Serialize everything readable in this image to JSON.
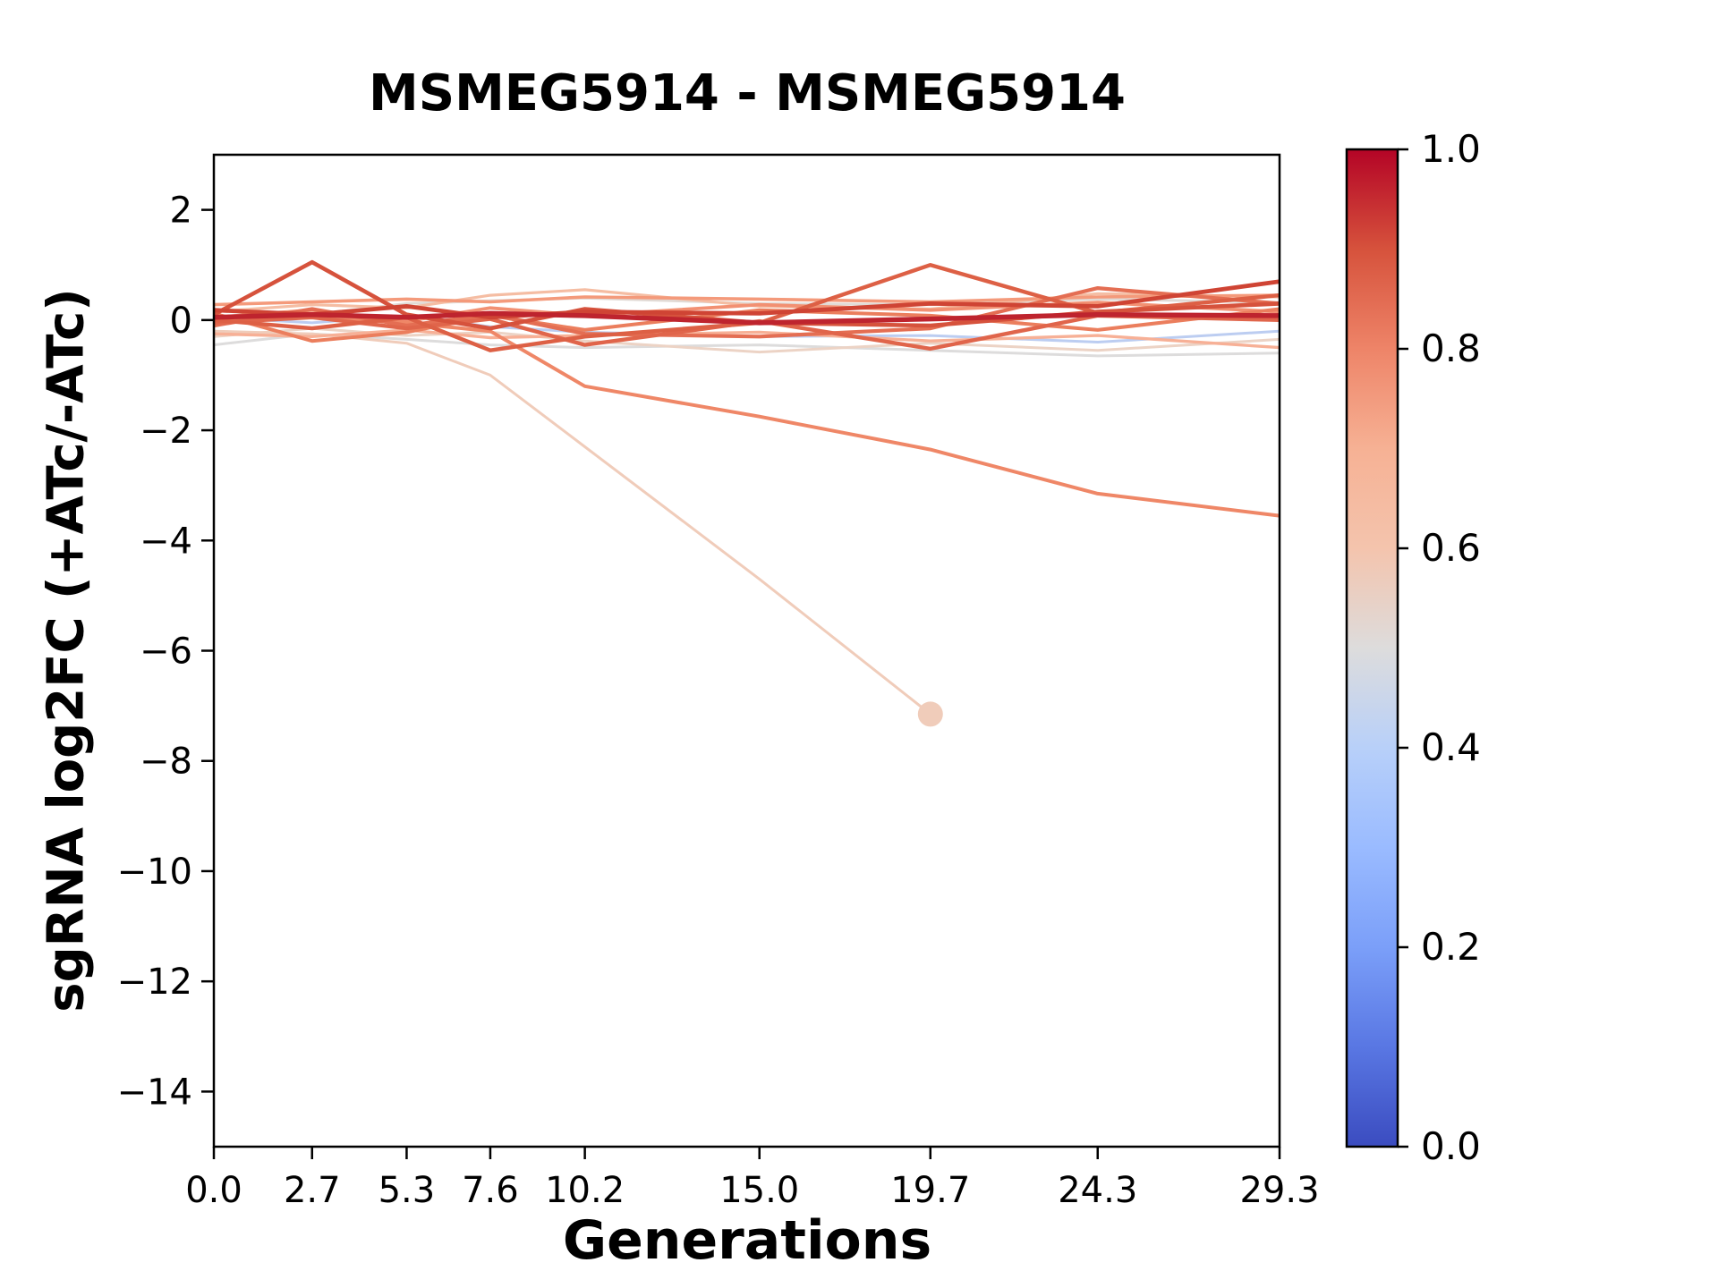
{
  "chart_data": {
    "type": "line",
    "title": "MSMEG5914 - MSMEG5914",
    "xlabel": "Generations",
    "ylabel": "sgRNA log2FC (+ATc/-ATc)",
    "xlim": [
      0,
      29.3
    ],
    "ylim": [
      -15,
      3
    ],
    "grid": false,
    "background": "#ffffff",
    "spine_color": "#000000",
    "x": [
      0.0,
      2.7,
      5.3,
      7.6,
      10.2,
      15.0,
      19.7,
      24.3,
      29.3
    ],
    "x_tick_labels": [
      "0.0",
      "2.7",
      "5.3",
      "7.6",
      "10.2",
      "15.0",
      "19.7",
      "24.3",
      "29.3"
    ],
    "y_ticks": [
      2,
      0,
      -2,
      -4,
      -6,
      -8,
      -10,
      -12,
      -14
    ],
    "y_tick_labels": [
      "2",
      "0",
      "−2",
      "−4",
      "−6",
      "−8",
      "−10",
      "−12",
      "−14"
    ],
    "series": [
      {
        "name": "line-01",
        "colormap_value": 0.42,
        "color": "#bccdf1",
        "width": 3.0,
        "values": [
          0.05,
          -0.05,
          0.08,
          -0.12,
          -0.22,
          -0.3,
          -0.28,
          -0.4,
          -0.2
        ]
      },
      {
        "name": "line-02",
        "colormap_value": 0.5,
        "color": "#dddcdc",
        "width": 3.0,
        "values": [
          -0.45,
          -0.25,
          -0.35,
          -0.45,
          -0.5,
          -0.45,
          -0.55,
          -0.65,
          -0.6
        ]
      },
      {
        "name": "line-03",
        "colormap_value": 0.53,
        "color": "#e1dad5",
        "width": 3.0,
        "values": [
          -0.05,
          0.1,
          0.3,
          0.35,
          0.4,
          0.3,
          0.28,
          0.38,
          0.32
        ]
      },
      {
        "name": "line-04",
        "colormap_value": 0.57,
        "color": "#ecd3c5",
        "width": 3.0,
        "values": [
          -0.3,
          -0.15,
          -0.28,
          -0.22,
          -0.38,
          -0.58,
          -0.42,
          -0.55,
          -0.35
        ]
      },
      {
        "name": "line-05",
        "colormap_value": 0.6,
        "color": "#f0ccba",
        "width": 3.0,
        "has_end_marker": true,
        "end_marker_radius": 14,
        "values": [
          -0.2,
          -0.25,
          -0.42,
          -1.0,
          -2.3,
          -4.7,
          -7.15
        ]
      },
      {
        "name": "line-06",
        "colormap_value": 0.65,
        "color": "#f5bda3",
        "width": 3.2,
        "values": [
          0.15,
          0.28,
          0.22,
          0.45,
          0.55,
          0.25,
          0.2,
          0.48,
          0.42
        ]
      },
      {
        "name": "line-07",
        "colormap_value": 0.7,
        "color": "#f7b096",
        "width": 3.4,
        "values": [
          -0.25,
          -0.3,
          -0.18,
          -0.32,
          -0.28,
          -0.22,
          -0.38,
          -0.28,
          -0.5
        ]
      },
      {
        "name": "line-08",
        "colormap_value": 0.75,
        "color": "#f49a7b",
        "width": 3.6,
        "values": [
          0.28,
          0.33,
          0.38,
          0.33,
          0.42,
          0.38,
          0.33,
          0.42,
          0.45
        ]
      },
      {
        "name": "line-09",
        "colormap_value": 0.78,
        "color": "#f29072",
        "width": 3.8,
        "values": [
          0.05,
          0.18,
          -0.02,
          0.22,
          0.08,
          0.28,
          0.18,
          0.32,
          0.15
        ]
      },
      {
        "name": "line-10",
        "colormap_value": 0.8,
        "color": "#ef8767",
        "width": 4.0,
        "values": [
          0.0,
          0.05,
          -0.05,
          -0.2,
          -1.2,
          -1.75,
          -2.35,
          -3.15,
          -3.55
        ]
      },
      {
        "name": "line-11",
        "colormap_value": 0.82,
        "color": "#eb7e5d",
        "width": 4.0,
        "values": [
          0.12,
          -0.38,
          -0.22,
          0.08,
          -0.18,
          0.18,
          0.08,
          -0.18,
          0.2
        ]
      },
      {
        "name": "line-12",
        "colormap_value": 0.85,
        "color": "#e46e53",
        "width": 4.2,
        "values": [
          -0.1,
          0.2,
          -0.1,
          0.1,
          -0.25,
          -0.3,
          -0.15,
          0.58,
          0.3
        ]
      },
      {
        "name": "line-13",
        "colormap_value": 0.87,
        "color": "#e0654b",
        "width": 4.4,
        "values": [
          -0.05,
          0.05,
          -0.15,
          0.02,
          -0.45,
          -0.02,
          -0.52,
          0.08,
          0.0
        ]
      },
      {
        "name": "line-14",
        "colormap_value": 0.88,
        "color": "#dd6045",
        "width": 4.4,
        "values": [
          0.0,
          -0.15,
          0.05,
          -0.55,
          -0.3,
          -0.05,
          1.0,
          0.13,
          0.45
        ]
      },
      {
        "name": "line-15",
        "colormap_value": 0.9,
        "color": "#d6523c",
        "width": 4.6,
        "values": [
          0.1,
          1.05,
          0.1,
          -0.15,
          0.2,
          -0.05,
          -0.1,
          0.15,
          0.3
        ]
      },
      {
        "name": "line-16",
        "colormap_value": 0.92,
        "color": "#cf4434",
        "width": 4.8,
        "values": [
          0.18,
          0.1,
          0.25,
          0.05,
          0.15,
          0.12,
          0.3,
          0.25,
          0.7
        ]
      },
      {
        "name": "line-17",
        "colormap_value": 0.97,
        "color": "#be242e",
        "width": 5.5,
        "values": [
          0.05,
          0.1,
          0.05,
          0.12,
          0.08,
          -0.05,
          0.02,
          0.1,
          0.08
        ]
      }
    ],
    "colorbar": {
      "colormap": "coolwarm",
      "min": 0.0,
      "max": 1.0,
      "tick_labels": [
        "0.0",
        "0.2",
        "0.4",
        "0.6",
        "0.8",
        "1.0"
      ],
      "gradient_stops": [
        {
          "offset": 0.0,
          "color": "#3b4cc0"
        },
        {
          "offset": 0.1,
          "color": "#5977e3"
        },
        {
          "offset": 0.2,
          "color": "#7b9ff9"
        },
        {
          "offset": 0.3,
          "color": "#9abbff"
        },
        {
          "offset": 0.4,
          "color": "#b8d0f9"
        },
        {
          "offset": 0.5,
          "color": "#dddcdc"
        },
        {
          "offset": 0.6,
          "color": "#f4c4ad"
        },
        {
          "offset": 0.7,
          "color": "#f6b194"
        },
        {
          "offset": 0.8,
          "color": "#ee8468"
        },
        {
          "offset": 0.9,
          "color": "#d6523c"
        },
        {
          "offset": 1.0,
          "color": "#b40426"
        }
      ]
    }
  }
}
